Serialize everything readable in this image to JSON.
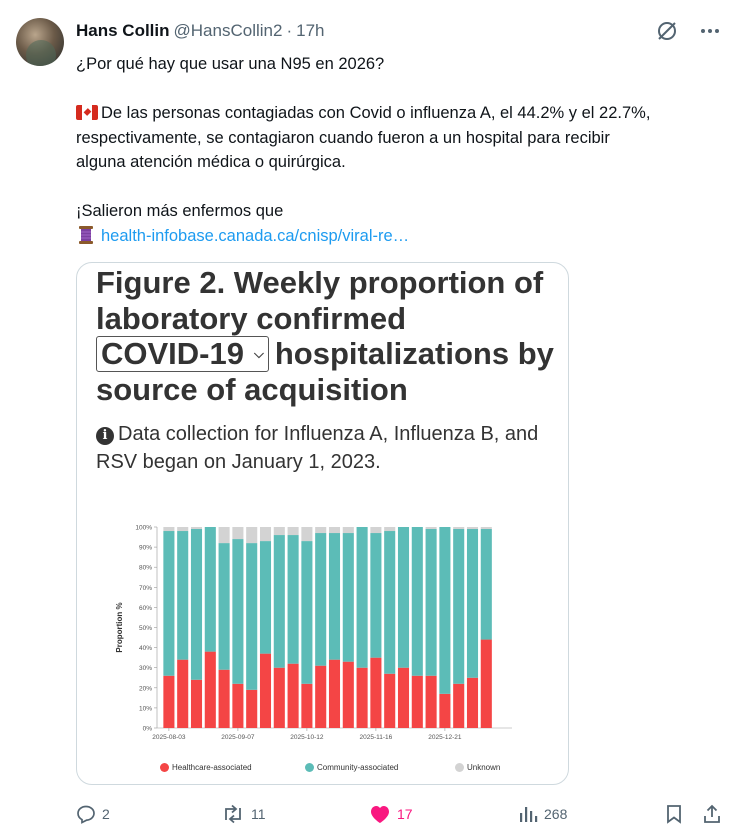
{
  "post": {
    "author_name": "Hans Collin",
    "handle": "@HansCollin2",
    "separator": "·",
    "time": "17h",
    "text_line1": "¿Por qué hay que usar una N95 en 2026?",
    "text_line2": "De las personas contagiadas con Covid o influenza A, el 44.2% y el 22.7%,",
    "text_line3": "respectivamente, se contagiaron cuando fueron a un hospital para recibir",
    "text_line4": "alguna atención médica o quirúrgica.",
    "text_line5": "¡Salieron más enfermos que",
    "link_text": "health-infobase.canada.ca/cnisp/viral-re…",
    "flag_icon": "canada-flag-icon",
    "thread_icon": "spool-of-thread-icon"
  },
  "figure": {
    "title_part1": "Figure 2. Weekly proportion of laboratory confirmed",
    "select_value": "COVID-19",
    "title_part2": "hospitalizations by source of acquisition",
    "info_text": "Data collection for Influenza A, Influenza B, and RSV began on January 1, 2023."
  },
  "chart_data": {
    "type": "bar",
    "stacked": true,
    "ylabel": "Proportion %",
    "yticks": [
      "0%",
      "10%",
      "20%",
      "30%",
      "40%",
      "50%",
      "60%",
      "70%",
      "80%",
      "90%",
      "100%"
    ],
    "ylim": [
      0,
      100
    ],
    "xticks": [
      "2025-08-03",
      "2025-09-07",
      "2025-10-12",
      "2025-11-16",
      "2025-12-21"
    ],
    "categories": [
      "2025-08-03",
      "2025-08-10",
      "2025-08-17",
      "2025-08-24",
      "2025-08-31",
      "2025-09-07",
      "2025-09-14",
      "2025-09-21",
      "2025-09-28",
      "2025-10-05",
      "2025-10-12",
      "2025-10-19",
      "2025-10-26",
      "2025-11-02",
      "2025-11-09",
      "2025-11-16",
      "2025-11-23",
      "2025-11-30",
      "2025-12-07",
      "2025-12-14",
      "2025-12-21",
      "2025-12-28",
      "2026-01-04",
      "2026-01-11",
      "2026-01-18"
    ],
    "series": [
      {
        "name": "Healthcare-associated",
        "color": "#f44545",
        "values": [
          26,
          34,
          24,
          38,
          29,
          22,
          19,
          37,
          30,
          32,
          22,
          31,
          34,
          33,
          30,
          35,
          27,
          30,
          26,
          26,
          17,
          22,
          25,
          44,
          0
        ]
      },
      {
        "name": "Community-associated",
        "color": "#5cbcb7",
        "values": [
          72,
          64,
          75,
          62,
          63,
          72,
          73,
          56,
          66,
          64,
          71,
          66,
          63,
          64,
          70,
          62,
          71,
          70,
          74,
          73,
          83,
          77,
          74,
          55,
          0
        ]
      },
      {
        "name": "Unknown",
        "color": "#d3d3d3",
        "values": [
          2,
          2,
          1,
          0,
          8,
          6,
          8,
          7,
          4,
          4,
          7,
          3,
          3,
          3,
          0,
          3,
          2,
          0,
          0,
          1,
          0,
          1,
          1,
          1,
          0
        ]
      }
    ],
    "legend_position": "bottom"
  },
  "actions": {
    "reply_count": "2",
    "repost_count": "11",
    "like_count": "17",
    "views_count": "268",
    "like_color": "#f91880"
  }
}
